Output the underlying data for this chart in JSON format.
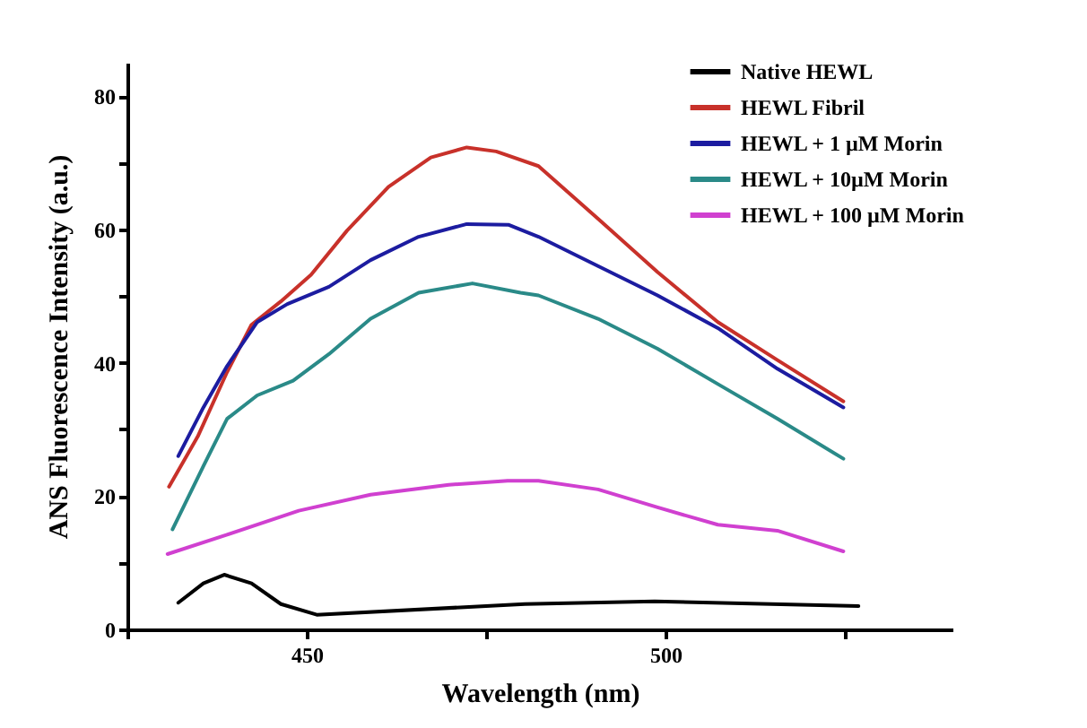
{
  "chart_data": {
    "type": "line",
    "xlabel": "Wavelength (nm)",
    "ylabel": "ANS Fluorescence Intensity (a.u.)",
    "xlim": [
      425,
      540
    ],
    "xticks": [
      {
        "value": 425,
        "label": null
      },
      450,
      {
        "value": 475,
        "label": null
      },
      500,
      {
        "value": 525,
        "label": null
      }
    ],
    "ylim": [
      0,
      85
    ],
    "yticks": [
      0,
      {
        "value": 10,
        "label": null
      },
      20,
      {
        "value": 30,
        "label": null
      },
      40,
      {
        "value": 50,
        "label": null
      },
      60,
      {
        "value": 70,
        "label": null
      },
      80
    ],
    "grid": false,
    "legend": "top right",
    "line_style": "solid",
    "marker": "none",
    "series": [
      {
        "name": "Native HEWL",
        "color": "#000000",
        "x": [
          432.1,
          435.6,
          438.5,
          442.3,
          446.4,
          451.4,
          471.4,
          480.4,
          498.5,
          526.9
        ],
        "values": [
          4.0,
          6.9,
          8.2,
          6.9,
          3.8,
          2.2,
          3.3,
          3.8,
          4.2,
          3.5
        ]
      },
      {
        "name": "HEWL Fibril",
        "color": "#c8312a",
        "x": [
          430.8,
          434.8,
          438.9,
          442.3,
          446.4,
          450.6,
          455.6,
          461.4,
          467.3,
          472.3,
          476.4,
          482.3,
          490.6,
          498.9,
          507.3,
          515.6,
          524.8
        ],
        "values": [
          21.4,
          28.9,
          38.6,
          45.7,
          49.2,
          53.2,
          59.8,
          66.4,
          70.8,
          72.3,
          71.7,
          69.5,
          61.6,
          53.6,
          46.1,
          40.4,
          34.2
        ]
      },
      {
        "name": "HEWL + 1 µM Morin",
        "color": "#1c1ca0",
        "x": [
          432.1,
          435.6,
          438.9,
          443.1,
          447.3,
          453.1,
          458.9,
          465.6,
          472.3,
          478.1,
          482.3,
          490.6,
          498.9,
          507.3,
          515.6,
          524.8
        ],
        "values": [
          26.0,
          33.3,
          39.5,
          46.1,
          48.8,
          51.4,
          55.4,
          58.9,
          60.8,
          60.7,
          58.9,
          54.5,
          50.1,
          45.2,
          39.1,
          33.3
        ]
      },
      {
        "name": "HEWL + 10µM Morin",
        "color": "#2a8a88",
        "x": [
          431.3,
          435.6,
          438.9,
          443.1,
          448.1,
          453.1,
          458.9,
          465.6,
          473.1,
          479.8,
          482.3,
          490.6,
          498.9,
          507.3,
          515.6,
          524.8
        ],
        "values": [
          15.0,
          24.5,
          31.6,
          35.1,
          37.3,
          41.3,
          46.6,
          50.5,
          51.9,
          50.5,
          50.1,
          46.6,
          42.1,
          36.8,
          31.6,
          25.6
        ]
      },
      {
        "name": "HEWL + 100 µM Morin",
        "color": "#d040d0",
        "x": [
          430.6,
          438.9,
          448.9,
          458.9,
          469.8,
          478.0,
          482.3,
          490.6,
          498.9,
          507.3,
          515.6,
          524.8
        ],
        "values": [
          11.3,
          14.2,
          17.8,
          20.2,
          21.7,
          22.3,
          22.3,
          21.0,
          18.3,
          15.7,
          14.8,
          11.7
        ]
      }
    ]
  }
}
